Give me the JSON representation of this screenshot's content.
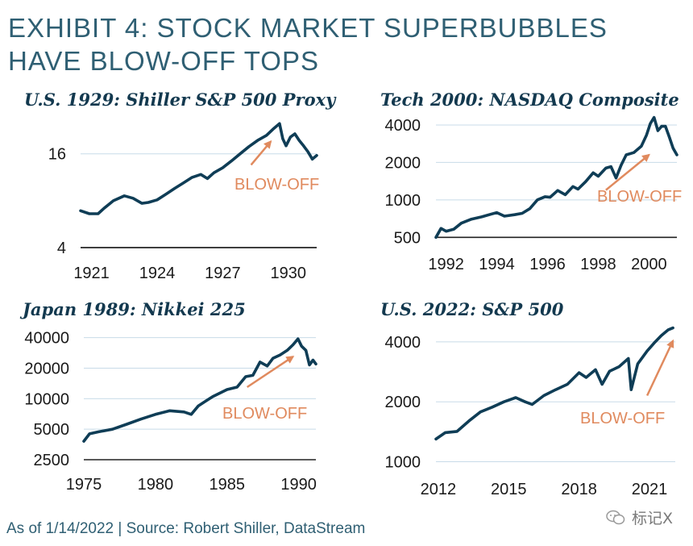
{
  "title": "EXHIBIT 4: STOCK MARKET SUPERBUBBLES HAVE BLOW-OFF TOPS",
  "footer": "As of 1/14/2022 | Source: Robert Shiller, DataStream",
  "watermark": "标记X",
  "colors": {
    "title": "#2f5f73",
    "series": "#0f3d56",
    "accent": "#e08a5e",
    "grid": "#c8dbe8"
  },
  "chart_data": [
    {
      "id": "us1929",
      "type": "line",
      "title": "U.S. 1929: Shiller S&P 500 Proxy",
      "yscale": "log",
      "ylim": [
        4,
        26
      ],
      "yticks": [
        {
          "v": 16,
          "label": "16"
        },
        {
          "v": 4,
          "label": "4"
        }
      ],
      "xlim": [
        1920.5,
        1931.3
      ],
      "xticks": [
        {
          "v": 1921,
          "label": "1921"
        },
        {
          "v": 1924,
          "label": "1924"
        },
        {
          "v": 1927,
          "label": "1927"
        },
        {
          "v": 1930,
          "label": "1930"
        }
      ],
      "annotation": "BLOW-OFF",
      "series": [
        {
          "name": "S&P 500 Proxy",
          "x": [
            1920.5,
            1920.9,
            1921.3,
            1921.6,
            1922.0,
            1922.5,
            1922.9,
            1923.3,
            1923.6,
            1924.0,
            1924.4,
            1924.8,
            1925.2,
            1925.6,
            1926.0,
            1926.3,
            1926.6,
            1927.0,
            1927.4,
            1927.8,
            1928.2,
            1928.6,
            1929.0,
            1929.3,
            1929.6,
            1929.75,
            1929.9,
            1930.1,
            1930.3,
            1930.5,
            1930.7,
            1930.9,
            1931.1,
            1931.3
          ],
          "values": [
            6.9,
            6.6,
            6.6,
            7.2,
            8.0,
            8.6,
            8.3,
            7.7,
            7.8,
            8.1,
            8.8,
            9.6,
            10.4,
            11.3,
            11.8,
            11.1,
            12.1,
            13.0,
            14.4,
            16.0,
            17.8,
            19.5,
            21.0,
            23.0,
            25.0,
            20.0,
            18.0,
            20.5,
            21.5,
            19.5,
            18.0,
            16.5,
            14.8,
            15.6
          ]
        }
      ],
      "arrow": {
        "from": [
          1928.3,
          13.6
        ],
        "to": [
          1929.2,
          19.2
        ]
      }
    },
    {
      "id": "tech2000",
      "type": "line",
      "title": "Tech 2000: NASDAQ Composite",
      "yscale": "log",
      "ylim": [
        480,
        5000
      ],
      "yticks": [
        {
          "v": 4000,
          "label": "4000"
        },
        {
          "v": 2000,
          "label": "2000"
        },
        {
          "v": 1000,
          "label": "1000"
        },
        {
          "v": 500,
          "label": "500"
        }
      ],
      "xlim": [
        1991.6,
        2001.1
      ],
      "xticks": [
        {
          "v": 1992,
          "label": "1992"
        },
        {
          "v": 1994,
          "label": "1994"
        },
        {
          "v": 1996,
          "label": "1996"
        },
        {
          "v": 1998,
          "label": "1998"
        },
        {
          "v": 2000,
          "label": "2000"
        }
      ],
      "annotation": "BLOW-OFF",
      "series": [
        {
          "name": "NASDAQ Composite",
          "x": [
            1991.6,
            1991.8,
            1992.0,
            1992.3,
            1992.6,
            1993.0,
            1993.4,
            1993.8,
            1994.0,
            1994.3,
            1994.7,
            1995.0,
            1995.3,
            1995.6,
            1995.9,
            1996.1,
            1996.4,
            1996.7,
            1997.0,
            1997.2,
            1997.5,
            1997.8,
            1998.0,
            1998.3,
            1998.5,
            1998.7,
            1998.9,
            1999.1,
            1999.4,
            1999.7,
            1999.9,
            2000.05,
            2000.2,
            2000.35,
            2000.5,
            2000.65,
            2000.8,
            2000.95,
            2001.1
          ],
          "values": [
            500,
            590,
            560,
            580,
            650,
            700,
            730,
            770,
            790,
            740,
            760,
            780,
            850,
            1000,
            1060,
            1050,
            1190,
            1100,
            1280,
            1220,
            1400,
            1650,
            1550,
            1800,
            1850,
            1500,
            1900,
            2300,
            2400,
            2700,
            3300,
            4100,
            4600,
            3600,
            3900,
            3900,
            3200,
            2600,
            2300
          ]
        }
      ],
      "arrow": {
        "from": [
          1998.3,
          1200
        ],
        "to": [
          2000.0,
          2300
        ]
      }
    },
    {
      "id": "japan1989",
      "type": "line",
      "title": "Japan 1989: Nikkei 225",
      "yscale": "log",
      "ylim": [
        2500,
        42000
      ],
      "yticks": [
        {
          "v": 40000,
          "label": "40000"
        },
        {
          "v": 20000,
          "label": "20000"
        },
        {
          "v": 10000,
          "label": "10000"
        },
        {
          "v": 5000,
          "label": "5000"
        },
        {
          "v": 2500,
          "label": "2500"
        }
      ],
      "xlim": [
        1975,
        1991.2
      ],
      "xticks": [
        {
          "v": 1975,
          "label": "1975"
        },
        {
          "v": 1980,
          "label": "1980"
        },
        {
          "v": 1985,
          "label": "1985"
        },
        {
          "v": 1990,
          "label": "1990"
        }
      ],
      "annotation": "BLOW-OFF",
      "series": [
        {
          "name": "Nikkei 225",
          "x": [
            1975.0,
            1975.4,
            1976.0,
            1977.0,
            1978.0,
            1979.0,
            1980.0,
            1981.0,
            1982.0,
            1982.5,
            1983.0,
            1984.0,
            1985.0,
            1985.7,
            1986.3,
            1986.8,
            1987.3,
            1987.8,
            1988.2,
            1988.7,
            1989.2,
            1989.6,
            1989.95,
            1990.2,
            1990.5,
            1990.75,
            1991.0,
            1991.2
          ],
          "values": [
            3800,
            4500,
            4700,
            5000,
            5600,
            6300,
            7000,
            7600,
            7400,
            7000,
            8500,
            10500,
            12300,
            13000,
            16500,
            17000,
            23000,
            21000,
            25000,
            27000,
            30000,
            34000,
            38900,
            33000,
            30000,
            21500,
            24000,
            22000
          ]
        }
      ],
      "arrow": {
        "from": [
          1986.4,
          13000
        ],
        "to": [
          1989.6,
          26000
        ]
      }
    },
    {
      "id": "us2022",
      "type": "line",
      "title": "U.S. 2022: S&P 500",
      "yscale": "log",
      "ylim": [
        950,
        5000
      ],
      "yticks": [
        {
          "v": 4000,
          "label": "4000"
        },
        {
          "v": 2000,
          "label": "2000"
        },
        {
          "v": 1000,
          "label": "1000"
        }
      ],
      "xlim": [
        2011.9,
        2022.1
      ],
      "xticks": [
        {
          "v": 2012,
          "label": "2012"
        },
        {
          "v": 2015,
          "label": "2015"
        },
        {
          "v": 2018,
          "label": "2018"
        },
        {
          "v": 2021,
          "label": "2021"
        }
      ],
      "annotation": "BLOW-OFF",
      "series": [
        {
          "name": "S&P 500",
          "x": [
            2011.9,
            2012.3,
            2012.8,
            2013.3,
            2013.8,
            2014.3,
            2014.8,
            2015.3,
            2015.7,
            2016.0,
            2016.5,
            2017.0,
            2017.5,
            2018.0,
            2018.3,
            2018.7,
            2018.98,
            2019.3,
            2019.7,
            2020.1,
            2020.22,
            2020.5,
            2020.9,
            2021.2,
            2021.5,
            2021.8,
            2022.0
          ],
          "values": [
            1300,
            1400,
            1420,
            1600,
            1780,
            1880,
            2000,
            2100,
            2000,
            1940,
            2150,
            2300,
            2450,
            2800,
            2650,
            2900,
            2450,
            2850,
            3000,
            3300,
            2300,
            3100,
            3600,
            3950,
            4300,
            4600,
            4700
          ]
        }
      ],
      "arrow": {
        "from": [
          2020.9,
          2150
        ],
        "to": [
          2022.0,
          4050
        ]
      }
    }
  ]
}
